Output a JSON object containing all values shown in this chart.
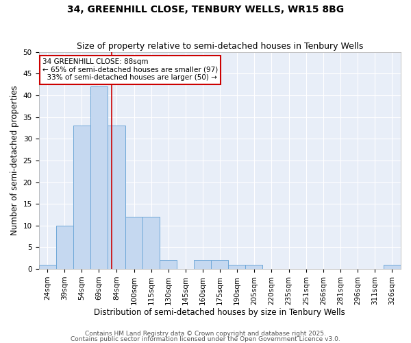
{
  "title1": "34, GREENHILL CLOSE, TENBURY WELLS, WR15 8BG",
  "title2": "Size of property relative to semi-detached houses in Tenbury Wells",
  "xlabel": "Distribution of semi-detached houses by size in Tenbury Wells",
  "ylabel": "Number of semi-detached properties",
  "bin_labels": [
    "24sqm",
    "39sqm",
    "54sqm",
    "69sqm",
    "84sqm",
    "100sqm",
    "115sqm",
    "130sqm",
    "145sqm",
    "160sqm",
    "175sqm",
    "190sqm",
    "205sqm",
    "220sqm",
    "235sqm",
    "251sqm",
    "266sqm",
    "281sqm",
    "296sqm",
    "311sqm",
    "326sqm"
  ],
  "bin_edges": [
    24,
    39,
    54,
    69,
    84,
    100,
    115,
    130,
    145,
    160,
    175,
    190,
    205,
    220,
    235,
    251,
    266,
    281,
    296,
    311,
    326,
    341
  ],
  "bar_heights": [
    1,
    10,
    33,
    42,
    33,
    12,
    12,
    2,
    0,
    2,
    2,
    1,
    1,
    0,
    0,
    0,
    0,
    0,
    0,
    0,
    1
  ],
  "bar_color": "#c5d8f0",
  "bar_edge_color": "#6fa8d8",
  "vline_x": 88,
  "vline_color": "#cc0000",
  "annotation_line1": "34 GREENHILL CLOSE: 88sqm",
  "annotation_line2": "← 65% of semi-detached houses are smaller (97)",
  "annotation_line3": "  33% of semi-detached houses are larger (50) →",
  "annotation_box_color": "#cc0000",
  "background_color": "#ffffff",
  "plot_bg_color": "#e8eef8",
  "grid_color": "#ffffff",
  "ylim": [
    0,
    50
  ],
  "yticks": [
    0,
    5,
    10,
    15,
    20,
    25,
    30,
    35,
    40,
    45,
    50
  ],
  "footer_text1": "Contains HM Land Registry data © Crown copyright and database right 2025.",
  "footer_text2": "Contains public sector information licensed under the Open Government Licence v3.0.",
  "title1_fontsize": 10,
  "title2_fontsize": 9,
  "xlabel_fontsize": 8.5,
  "ylabel_fontsize": 8.5,
  "tick_fontsize": 7.5,
  "annotation_fontsize": 7.5,
  "footer_fontsize": 6.5
}
